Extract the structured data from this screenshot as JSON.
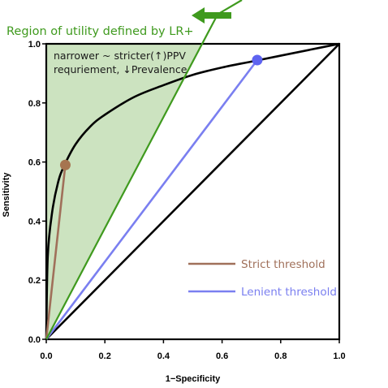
{
  "chart_data": {
    "type": "line",
    "xlabel": "1−Specificity",
    "ylabel": "Sensitivity",
    "xlim": [
      0,
      1
    ],
    "ylim": [
      0,
      1
    ],
    "x_ticks": [
      "0.0",
      "0.2",
      "0.4",
      "0.6",
      "0.8",
      "1.0"
    ],
    "y_ticks": [
      "0.0",
      "0.2",
      "0.4",
      "0.6",
      "0.8",
      "1.0"
    ],
    "grid": false,
    "roc_curve": {
      "x": [
        0,
        0.005,
        0.02,
        0.04,
        0.06,
        0.1,
        0.15,
        0.2,
        0.3,
        0.4,
        0.5,
        0.6,
        0.7,
        0.8,
        0.9,
        1.0
      ],
      "y": [
        0,
        0.28,
        0.43,
        0.53,
        0.585,
        0.66,
        0.72,
        0.76,
        0.82,
        0.86,
        0.895,
        0.92,
        0.94,
        0.96,
        0.98,
        1.0
      ]
    },
    "chance_line": {
      "x": [
        0,
        1
      ],
      "y": [
        0,
        1
      ]
    },
    "lr_plus_line": {
      "x": [
        0,
        0.585
      ],
      "y": [
        0,
        1.1
      ]
    },
    "region_label": "Region of utility defined by LR+",
    "annotation_line1": "narrower ~ stricter(↑)PPV",
    "annotation_line2": "requriement, ↓Prevalence",
    "series": [
      {
        "name": "Strict threshold",
        "x": [
          0,
          0.065
        ],
        "y": [
          0,
          0.59
        ],
        "color": "#a0705a",
        "point_color": "#a67550"
      },
      {
        "name": "Lenient threshold",
        "x": [
          0,
          0.72
        ],
        "y": [
          0,
          0.945
        ],
        "color": "#7a7ff0",
        "point_color": "#5e63f0"
      }
    ],
    "colors": {
      "region_fill": "#cce3c0",
      "region_line": "#3f9a1e",
      "arrow": "#3f9a1e",
      "curve": "#000000",
      "chance": "#000000"
    },
    "legend_placement": "bottom-right"
  }
}
